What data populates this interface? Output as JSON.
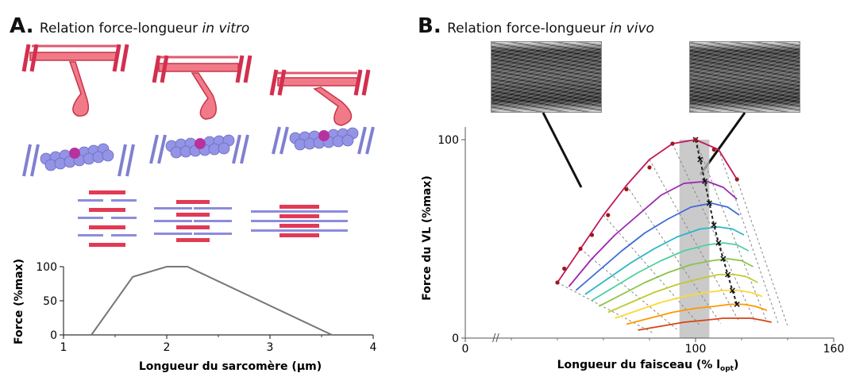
{
  "panel_a": {
    "letter": "A.",
    "title": "Relation force-longueur",
    "title_italic": "in vitro",
    "chart": {
      "ylabel": "Force (%max)",
      "xlabel": "Longueur du sarcomère (μm)",
      "yticks": [
        "0",
        "50",
        "100"
      ],
      "xticks": [
        "1",
        "2",
        "3",
        "4"
      ]
    }
  },
  "panel_b": {
    "letter": "B.",
    "title": "Relation force-longueur",
    "title_italic": "in vivo",
    "chart": {
      "ylabel": "Force du VL (%max)",
      "xlabel": "Longueur du faisceau (% l",
      "xlabel_sub": "opt",
      "xlabel_end": ")",
      "yticks": [
        "0",
        "100"
      ],
      "xticks": [
        "0",
        "100",
        "160"
      ]
    }
  },
  "chart_data": [
    {
      "type": "line",
      "title": "",
      "xlabel": "Longueur du sarcomère (μm)",
      "ylabel": "Force (%max)",
      "xlim": [
        1,
        4
      ],
      "ylim": [
        0,
        100
      ],
      "x": [
        1.27,
        1.67,
        2.0,
        2.2,
        3.6
      ],
      "y": [
        0,
        85,
        100,
        100,
        0
      ]
    },
    {
      "type": "line",
      "title": "",
      "xlabel": "Longueur du faisceau (% lopt)",
      "ylabel": "Force du VL (%max)",
      "xlim": [
        0,
        160
      ],
      "ylim": [
        0,
        100
      ],
      "series": [
        {
          "color": "#c2185b",
          "x": [
            40,
            50,
            60,
            70,
            80,
            90,
            100,
            110,
            118
          ],
          "y": [
            28,
            45,
            62,
            77,
            90,
            98,
            100,
            95,
            80
          ]
        },
        {
          "color": "#9c27b0",
          "x": [
            45,
            55,
            65,
            75,
            85,
            95,
            105,
            112,
            118
          ],
          "y": [
            26,
            40,
            52,
            62,
            72,
            78,
            79,
            76,
            70
          ]
        },
        {
          "color": "#3f6bd6",
          "x": [
            48,
            58,
            68,
            78,
            88,
            98,
            107,
            114,
            119
          ],
          "y": [
            24,
            34,
            44,
            53,
            60,
            66,
            68,
            66,
            62
          ]
        },
        {
          "color": "#29b6c8",
          "x": [
            52,
            62,
            72,
            82,
            92,
            102,
            110,
            116,
            121
          ],
          "y": [
            22,
            30,
            38,
            45,
            51,
            55,
            56,
            55,
            52
          ]
        },
        {
          "color": "#4dd0a0",
          "x": [
            55,
            65,
            75,
            85,
            95,
            105,
            112,
            118,
            123
          ],
          "y": [
            19,
            26,
            33,
            39,
            44,
            47,
            48,
            47,
            44
          ]
        },
        {
          "color": "#8bc34a",
          "x": [
            58,
            68,
            78,
            88,
            98,
            107,
            114,
            120,
            125
          ],
          "y": [
            16,
            22,
            28,
            33,
            37,
            39,
            40,
            39,
            36
          ]
        },
        {
          "color": "#c0ca33",
          "x": [
            62,
            72,
            82,
            92,
            102,
            110,
            117,
            122,
            127
          ],
          "y": [
            13,
            18,
            23,
            27,
            30,
            32,
            32,
            31,
            28
          ]
        },
        {
          "color": "#fdd835",
          "x": [
            65,
            75,
            85,
            95,
            104,
            112,
            119,
            124,
            129
          ],
          "y": [
            10,
            14,
            18,
            21,
            23,
            24,
            24,
            23,
            21
          ]
        },
        {
          "color": "#ff9800",
          "x": [
            70,
            80,
            90,
            100,
            108,
            115,
            121,
            126,
            131
          ],
          "y": [
            7,
            10,
            13,
            15,
            16,
            17,
            17,
            16,
            14
          ]
        },
        {
          "color": "#d84315",
          "x": [
            75,
            85,
            95,
            104,
            112,
            119,
            124,
            129,
            133
          ],
          "y": [
            4,
            6,
            8,
            9,
            10,
            10,
            10,
            9,
            8
          ]
        }
      ],
      "optimum": {
        "x": [
          100,
          102,
          104,
          106,
          108,
          110,
          112,
          114,
          116,
          118
        ],
        "y": [
          100,
          90,
          79,
          68,
          57,
          48,
          40,
          32,
          24,
          17
        ]
      },
      "data_points": {
        "x": [
          40,
          43,
          50,
          55,
          62,
          70,
          80,
          90,
          100,
          108,
          118
        ],
        "y": [
          28,
          35,
          45,
          52,
          62,
          75,
          86,
          98,
          100,
          95,
          80
        ]
      },
      "grey_band": [
        93,
        106
      ]
    }
  ]
}
